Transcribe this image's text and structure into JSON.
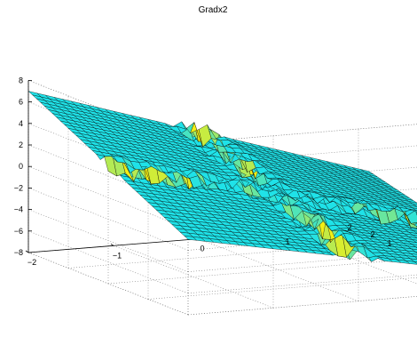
{
  "chart_data": {
    "type": "surface",
    "title": "Gradx2",
    "xlabel": "",
    "ylabel": "",
    "zlabel": "",
    "x_range": [
      -2,
      2
    ],
    "y_range": [
      -2,
      2
    ],
    "z_range": [
      -8,
      8
    ],
    "x_ticks": [
      "−2",
      "−1",
      "0",
      "1",
      "2"
    ],
    "y_ticks": [
      "−2",
      "−1",
      "0",
      "1",
      "2"
    ],
    "z_ticks": [
      "−8",
      "−6",
      "−4",
      "−2",
      "0",
      "2",
      "4",
      "6",
      "8"
    ],
    "grid": true,
    "box": "open-3d",
    "mesh_resolution": 40,
    "surface_description": "Near-planar surface sloping from about -7 at corner (x=2, y=-2) to about +7 at corner (x=-2, y=2), with jagged ridge/valley artifacts along the lines x=0 and y=0.",
    "approx_corner_values": [
      {
        "x": -2,
        "y": -2,
        "z": -1
      },
      {
        "x": 2,
        "y": -2,
        "z": -7
      },
      {
        "x": 2,
        "y": 2,
        "z": -3
      },
      {
        "x": -2,
        "y": 2,
        "z": 7
      }
    ],
    "colors": {
      "surface_low": "#1fe2e8",
      "surface_high": "#f2ee16",
      "mesh_edge": "#000000",
      "grid": "#7f7f7f"
    }
  }
}
